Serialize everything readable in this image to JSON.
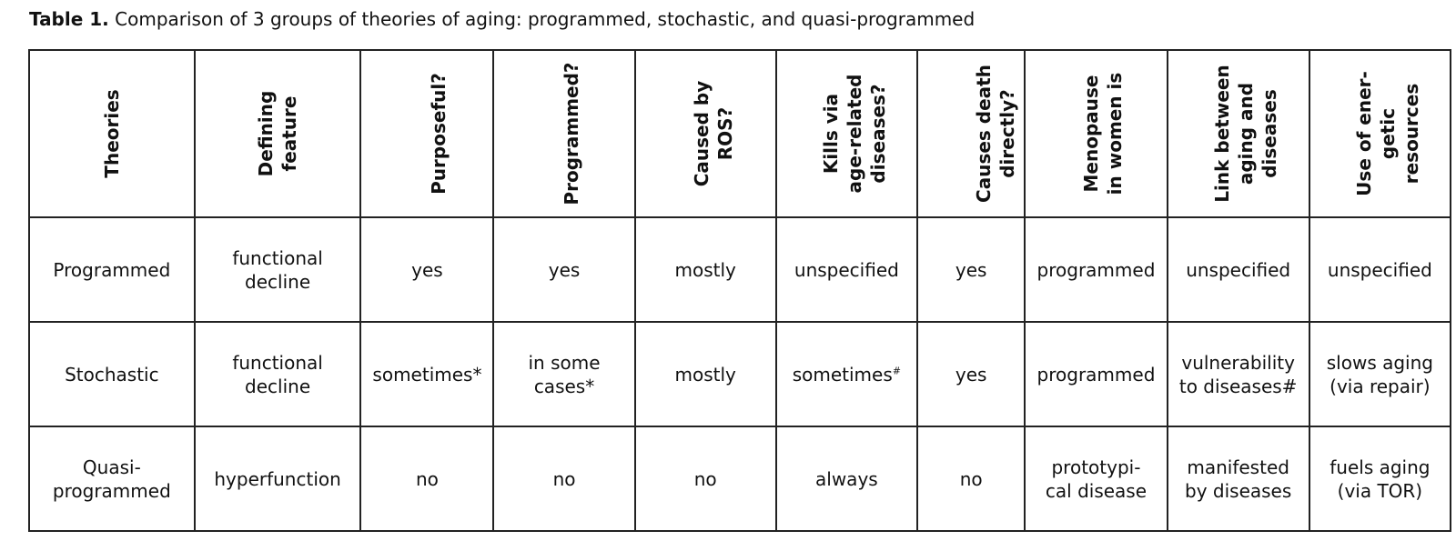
{
  "caption": {
    "lead": "Table 1.",
    "text": "Comparison of 3 groups of theories of aging: programmed, stochastic, and quasi-programmed"
  },
  "table": {
    "headers": [
      "Theories",
      "Defining\nfeature",
      "Purposeful?",
      "Programmed?",
      "Caused by\nROS?",
      "Kills via\nage-related\ndiseases?",
      "Causes death\ndirectly?",
      "Menopause\nin women is",
      "Link between\naging and\ndiseases",
      "Use of ener-\ngetic resources"
    ],
    "rows": [
      [
        "Programmed",
        "functional\ndecline",
        "yes",
        "yes",
        "mostly",
        "unspecified",
        "yes",
        "programmed",
        "unspecified",
        "unspecified"
      ],
      [
        "Stochastic",
        "functional\ndecline",
        "sometimes*",
        "in some\ncases*",
        "mostly",
        "sometimes",
        "yes",
        "programmed",
        "vulnerability\nto diseases#",
        "slows aging\n(via repair)"
      ],
      [
        "Quasi-\nprogrammed",
        "hyperfunction",
        "no",
        "no",
        "no",
        "always",
        "no",
        "prototypi-\ncal disease",
        "manifested\nby diseases",
        "fuels aging\n(via TOR)"
      ]
    ],
    "footnote_mark": "#"
  }
}
